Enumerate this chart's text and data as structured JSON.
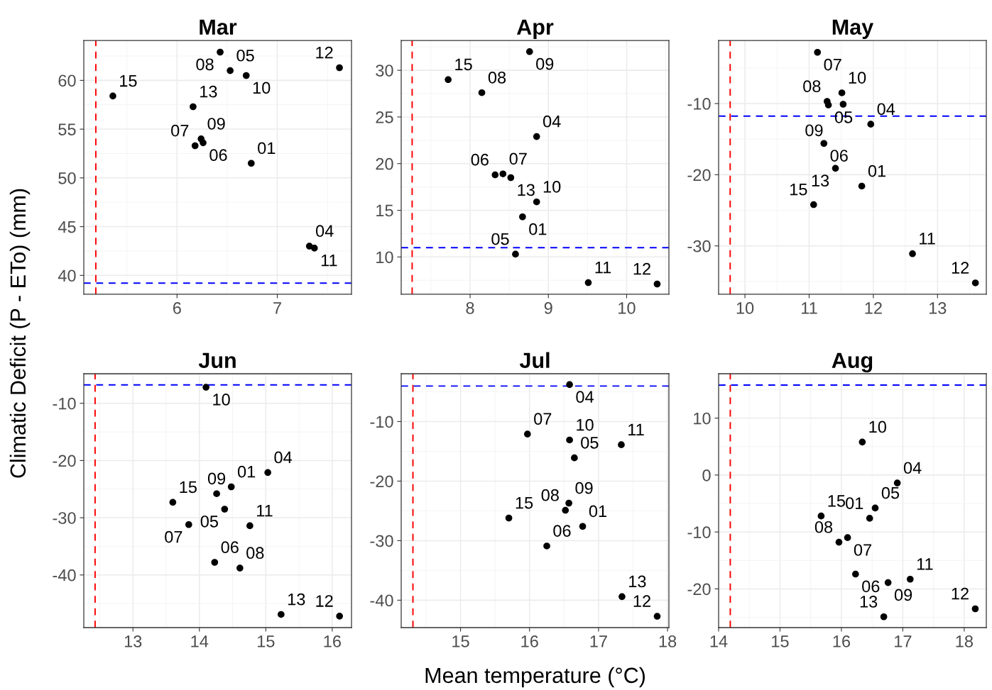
{
  "chart_data": [
    {
      "type": "scatter",
      "title": "Mar",
      "ylabel": "Climatic Deficit (P - ETo) (mm)",
      "grid": true,
      "marker": "circle",
      "xlim": [
        5.07,
        7.74
      ],
      "ylim": [
        38.06,
        64.1
      ],
      "xticks": [
        6,
        7
      ],
      "yticks": [
        40,
        45,
        50,
        55,
        60
      ],
      "series": [
        {
          "color": "#000000",
          "x": [
            5.36,
            6.43,
            6.53,
            6.69,
            7.62,
            6.16,
            6.24,
            6.18,
            6.26,
            6.74,
            7.32,
            7.37
          ],
          "values": [
            58.4,
            62.9,
            61.0,
            60.5,
            61.3,
            57.3,
            54.0,
            53.3,
            53.6,
            51.5,
            43.0,
            42.8
          ]
        }
      ],
      "annotations": [
        {
          "text": "15",
          "x": 5.36,
          "y": 58.4
        },
        {
          "text": "08",
          "x": 6.43,
          "y": 62.9
        },
        {
          "text": "05",
          "x": 6.53,
          "y": 61.0
        },
        {
          "text": "10",
          "x": 6.69,
          "y": 60.5
        },
        {
          "text": "12",
          "x": 7.62,
          "y": 61.3
        },
        {
          "text": "13",
          "x": 6.16,
          "y": 57.3
        },
        {
          "text": "09",
          "x": 6.24,
          "y": 54.0
        },
        {
          "text": "07",
          "x": 6.18,
          "y": 53.3
        },
        {
          "text": "06",
          "x": 6.26,
          "y": 53.6
        },
        {
          "text": "01",
          "x": 6.74,
          "y": 51.5
        },
        {
          "text": "04",
          "x": 7.32,
          "y": 43.0
        },
        {
          "text": "11",
          "x": 7.37,
          "y": 42.8
        }
      ],
      "ref_lines": [
        {
          "axis": "x",
          "value": 5.19,
          "color": "#ff0000",
          "line_style": "dashed"
        },
        {
          "axis": "y",
          "value": 39.2,
          "color": "#0000ff",
          "line_style": "dashed"
        }
      ]
    },
    {
      "type": "scatter",
      "title": "Apr",
      "grid": true,
      "marker": "circle",
      "xlim": [
        7.12,
        10.54
      ],
      "ylim": [
        6.0,
        33.2
      ],
      "xticks": [
        8,
        9,
        10
      ],
      "yticks": [
        10,
        15,
        20,
        25,
        30
      ],
      "series": [
        {
          "color": "#000000",
          "x": [
            7.72,
            8.76,
            8.15,
            8.85,
            8.32,
            8.42,
            8.52,
            8.85,
            8.67,
            8.58,
            9.51,
            10.39
          ],
          "values": [
            29.0,
            32.0,
            27.6,
            22.9,
            18.8,
            18.9,
            18.5,
            15.9,
            14.3,
            10.3,
            7.25,
            7.1
          ]
        }
      ],
      "annotations": [
        {
          "text": "15",
          "x": 7.72,
          "y": 29.0
        },
        {
          "text": "09",
          "x": 8.76,
          "y": 32.0
        },
        {
          "text": "08",
          "x": 8.15,
          "y": 27.6
        },
        {
          "text": "04",
          "x": 8.85,
          "y": 22.9
        },
        {
          "text": "06",
          "x": 8.32,
          "y": 18.8
        },
        {
          "text": "07",
          "x": 8.42,
          "y": 18.9
        },
        {
          "text": "13",
          "x": 8.52,
          "y": 18.5
        },
        {
          "text": "10",
          "x": 8.85,
          "y": 15.9
        },
        {
          "text": "01",
          "x": 8.67,
          "y": 14.3
        },
        {
          "text": "05",
          "x": 8.58,
          "y": 10.3
        },
        {
          "text": "11",
          "x": 9.51,
          "y": 7.25
        },
        {
          "text": "12",
          "x": 10.39,
          "y": 7.1
        }
      ],
      "ref_lines": [
        {
          "axis": "x",
          "value": 7.26,
          "color": "#ff0000",
          "line_style": "dashed"
        },
        {
          "axis": "y",
          "value": 11.0,
          "color": "#0000ff",
          "line_style": "dashed"
        }
      ]
    },
    {
      "type": "scatter",
      "title": "May",
      "grid": true,
      "marker": "circle",
      "xlim": [
        9.59,
        13.76
      ],
      "ylim": [
        -36.8,
        -1.13
      ],
      "xticks": [
        10,
        11,
        12,
        13
      ],
      "yticks": [
        -30,
        -20,
        -10
      ],
      "series": [
        {
          "color": "#000000",
          "x": [
            11.13,
            11.51,
            11.28,
            11.3,
            11.53,
            11.96,
            11.23,
            11.41,
            11.82,
            11.07,
            12.61,
            13.59
          ],
          "values": [
            -2.8,
            -8.5,
            -9.7,
            -10.2,
            -10.1,
            -12.9,
            -15.6,
            -19.1,
            -21.6,
            -24.2,
            -31.1,
            -35.2
          ]
        }
      ],
      "annotations": [
        {
          "text": "07",
          "x": 11.13,
          "y": -2.8
        },
        {
          "text": "10",
          "x": 11.51,
          "y": -8.5
        },
        {
          "text": "08",
          "x": 11.28,
          "y": -9.7
        },
        {
          "text": "05",
          "x": 11.3,
          "y": -10.2
        },
        {
          "text": "09",
          "x": 11.53,
          "y": -10.1
        },
        {
          "text": "04",
          "x": 11.96,
          "y": -12.9
        },
        {
          "text": "06",
          "x": 11.23,
          "y": -15.6
        },
        {
          "text": "13",
          "x": 11.41,
          "y": -19.1
        },
        {
          "text": "01",
          "x": 11.82,
          "y": -21.6
        },
        {
          "text": "15",
          "x": 11.07,
          "y": -24.2
        },
        {
          "text": "11",
          "x": 12.61,
          "y": -31.1
        },
        {
          "text": "12",
          "x": 13.59,
          "y": -35.2
        }
      ],
      "ref_lines": [
        {
          "axis": "x",
          "value": 9.77,
          "color": "#ff0000",
          "line_style": "dashed"
        },
        {
          "axis": "y",
          "value": -11.76,
          "color": "#0000ff",
          "line_style": "dashed"
        }
      ]
    },
    {
      "type": "scatter",
      "title": "Jun",
      "grid": true,
      "marker": "circle",
      "xlim": [
        12.26,
        16.29
      ],
      "ylim": [
        -49.2,
        -4.83
      ],
      "xticks": [
        13,
        14,
        15,
        16
      ],
      "yticks": [
        -40,
        -30,
        -20,
        -10
      ],
      "series": [
        {
          "color": "#000000",
          "x": [
            14.1,
            15.03,
            14.48,
            13.6,
            14.26,
            14.38,
            13.84,
            14.76,
            14.23,
            14.61,
            15.23,
            16.11
          ],
          "values": [
            -7.2,
            -22.1,
            -24.6,
            -27.3,
            -25.8,
            -28.5,
            -31.2,
            -31.4,
            -37.8,
            -38.8,
            -46.9,
            -47.2
          ]
        }
      ],
      "annotations": [
        {
          "text": "10",
          "x": 14.1,
          "y": -7.2
        },
        {
          "text": "04",
          "x": 15.03,
          "y": -22.1
        },
        {
          "text": "01",
          "x": 14.48,
          "y": -24.6
        },
        {
          "text": "15",
          "x": 13.6,
          "y": -27.3
        },
        {
          "text": "09",
          "x": 14.26,
          "y": -25.8
        },
        {
          "text": "05",
          "x": 14.38,
          "y": -28.5
        },
        {
          "text": "07",
          "x": 13.84,
          "y": -31.2
        },
        {
          "text": "11",
          "x": 14.76,
          "y": -31.4
        },
        {
          "text": "06",
          "x": 14.23,
          "y": -37.8
        },
        {
          "text": "08",
          "x": 14.61,
          "y": -38.8
        },
        {
          "text": "13",
          "x": 15.23,
          "y": -46.9
        },
        {
          "text": "12",
          "x": 16.11,
          "y": -47.2
        }
      ],
      "ref_lines": [
        {
          "axis": "x",
          "value": 12.43,
          "color": "#ff0000",
          "line_style": "dashed"
        },
        {
          "axis": "y",
          "value": -6.77,
          "color": "#0000ff",
          "line_style": "dashed"
        }
      ]
    },
    {
      "type": "scatter",
      "title": "Jul",
      "xlabel": "Mean temperature (°C)",
      "grid": true,
      "marker": "circle",
      "xlim": [
        14.14,
        18.02
      ],
      "ylim": [
        -44.6,
        -1.97
      ],
      "xticks": [
        15,
        16,
        17,
        18
      ],
      "yticks": [
        -40,
        -30,
        -20,
        -10
      ],
      "series": [
        {
          "color": "#000000",
          "x": [
            16.58,
            15.97,
            16.58,
            17.33,
            16.65,
            16.57,
            16.52,
            15.7,
            16.77,
            16.25,
            17.34,
            17.85
          ],
          "values": [
            -3.8,
            -12.1,
            -13.1,
            -13.9,
            -16.1,
            -23.7,
            -24.9,
            -26.2,
            -27.6,
            -30.9,
            -39.4,
            -42.7
          ]
        }
      ],
      "annotations": [
        {
          "text": "04",
          "x": 16.58,
          "y": -3.8
        },
        {
          "text": "07",
          "x": 15.97,
          "y": -12.1
        },
        {
          "text": "10",
          "x": 16.58,
          "y": -13.1
        },
        {
          "text": "11",
          "x": 17.33,
          "y": -13.9
        },
        {
          "text": "05",
          "x": 16.65,
          "y": -16.1
        },
        {
          "text": "09",
          "x": 16.57,
          "y": -23.7
        },
        {
          "text": "08",
          "x": 16.52,
          "y": -24.9
        },
        {
          "text": "15",
          "x": 15.7,
          "y": -26.2
        },
        {
          "text": "01",
          "x": 16.77,
          "y": -27.6
        },
        {
          "text": "06",
          "x": 16.25,
          "y": -30.9
        },
        {
          "text": "13",
          "x": 17.34,
          "y": -39.4
        },
        {
          "text": "12",
          "x": 17.85,
          "y": -42.7
        }
      ],
      "ref_lines": [
        {
          "axis": "x",
          "value": 14.31,
          "color": "#ff0000",
          "line_style": "dashed"
        },
        {
          "axis": "y",
          "value": -4.04,
          "color": "#0000ff",
          "line_style": "dashed"
        }
      ]
    },
    {
      "type": "scatter",
      "title": "Aug",
      "grid": true,
      "marker": "circle",
      "xlim": [
        14.0,
        18.36
      ],
      "ylim": [
        -26.8,
        17.8
      ],
      "xticks": [
        14,
        15,
        16,
        17,
        18
      ],
      "yticks": [
        -20,
        -10,
        0,
        10
      ],
      "series": [
        {
          "color": "#000000",
          "x": [
            16.34,
            16.91,
            16.55,
            16.46,
            15.67,
            16.1,
            15.96,
            16.23,
            16.76,
            17.12,
            16.69,
            18.18
          ],
          "values": [
            5.8,
            -1.4,
            -5.8,
            -7.6,
            -7.2,
            -11.0,
            -11.8,
            -17.4,
            -18.9,
            -18.3,
            -24.9,
            -23.5
          ]
        }
      ],
      "annotations": [
        {
          "text": "10",
          "x": 16.34,
          "y": 5.8
        },
        {
          "text": "04",
          "x": 16.91,
          "y": -1.4
        },
        {
          "text": "05",
          "x": 16.55,
          "y": -5.8
        },
        {
          "text": "01",
          "x": 16.46,
          "y": -7.6
        },
        {
          "text": "15",
          "x": 15.67,
          "y": -7.2
        },
        {
          "text": "07",
          "x": 16.1,
          "y": -11.0
        },
        {
          "text": "08",
          "x": 15.96,
          "y": -11.8
        },
        {
          "text": "06",
          "x": 16.23,
          "y": -17.4
        },
        {
          "text": "09",
          "x": 16.76,
          "y": -18.9
        },
        {
          "text": "11",
          "x": 17.12,
          "y": -18.3
        },
        {
          "text": "13",
          "x": 16.69,
          "y": -24.9
        },
        {
          "text": "12",
          "x": 18.18,
          "y": -23.5
        }
      ],
      "ref_lines": [
        {
          "axis": "x",
          "value": 14.19,
          "color": "#ff0000",
          "line_style": "dashed"
        },
        {
          "axis": "y",
          "value": 15.8,
          "color": "#0000ff",
          "line_style": "dashed"
        }
      ]
    }
  ]
}
